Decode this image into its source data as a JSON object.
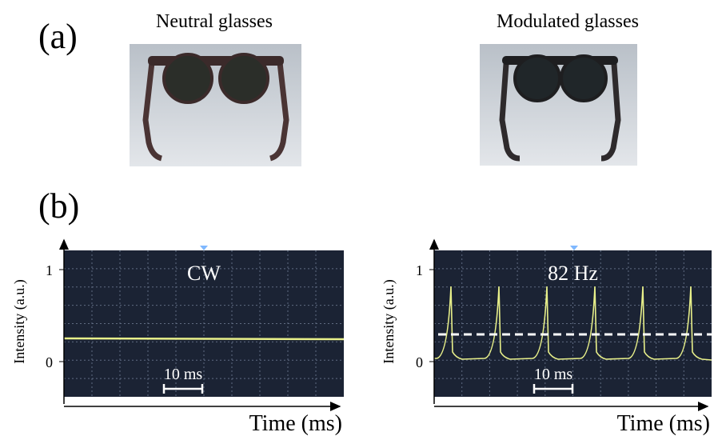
{
  "panel_a": {
    "label": "(a)",
    "left_caption": "Neutral glasses",
    "right_caption": "Modulated glasses"
  },
  "panel_b": {
    "label": "(b)",
    "left_scope": {
      "title": "CW",
      "y_axis_label": "Intensity (a.u.)",
      "y_tick_top": "1",
      "y_tick_bottom": "0",
      "scale_bar": "10 ms",
      "x_axis_label": "Time (ms)"
    },
    "right_scope": {
      "title": "82 Hz",
      "y_axis_label": "Intensity (a.u.)",
      "y_tick_top": "1",
      "y_tick_bottom": "0",
      "scale_bar": "10 ms",
      "x_axis_label": "Time (ms)"
    }
  }
}
